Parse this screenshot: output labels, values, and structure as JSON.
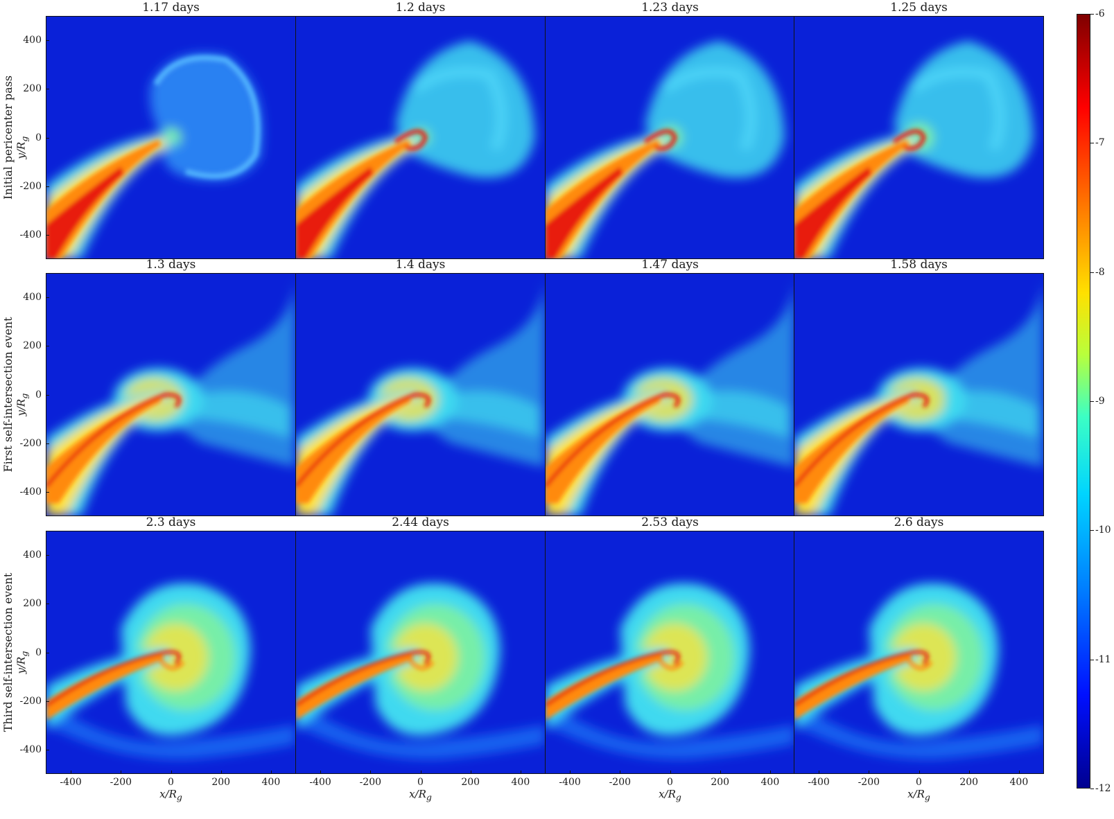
{
  "row_labels": [
    "Initial pericenter pass",
    "First self-intersection event",
    "Third self-intersection event"
  ],
  "panel_titles": [
    [
      "1.17 days",
      "1.2 days",
      "1.23 days",
      "1.25 days"
    ],
    [
      "1.3 days",
      "1.4 days",
      "1.47 days",
      "1.58 days"
    ],
    [
      "2.3 days",
      "2.44 days",
      "2.53 days",
      "2.6 days"
    ]
  ],
  "axes": {
    "ylabel": "y/R",
    "ylabel_sub": "g",
    "xlabel": "x/R",
    "xlabel_sub": "g",
    "y_ticks": [
      "400",
      "200",
      "0",
      "-200",
      "-400"
    ],
    "x_ticks": [
      "-400",
      "-200",
      "0",
      "200",
      "400"
    ],
    "range": [
      -500,
      500
    ]
  },
  "colorbar": {
    "ticks": [
      "-6",
      "-7",
      "-8",
      "-9",
      "-10",
      "-11",
      "-12"
    ],
    "range": [
      -12,
      -6
    ],
    "colormap": "jet"
  },
  "colors": {
    "background_blue": "#0a21d8",
    "halo_blue": "#1e8cff",
    "cloud_cyan": "#3fd9f0",
    "cloud_green": "#7df0a0",
    "yellow": "#ffe23a",
    "orange": "#ff8a10",
    "red": "#e81a08"
  }
}
